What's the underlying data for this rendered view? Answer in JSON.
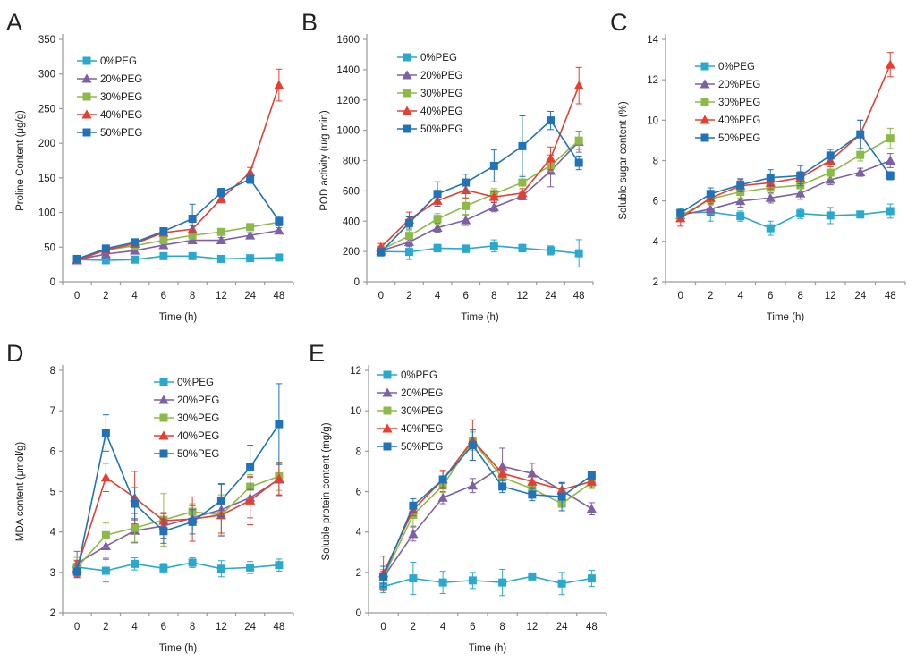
{
  "figure_title": "PEG stress physiology figure",
  "legend_labels": [
    "0%PEG",
    "20%PEG",
    "30%PEG",
    "40%PEG",
    "50%PEG"
  ],
  "colors": {
    "peg0": "#29A9CE",
    "peg20": "#7D60A5",
    "peg30": "#8CBA49",
    "peg40": "#E63E30",
    "peg50": "#2173B7",
    "axis": "#9a9a9a",
    "text": "#1a1a1a"
  },
  "chart_data": [
    {
      "panel": "A",
      "type": "line",
      "title": "",
      "xlabel": "Time (h)",
      "ylabel": "Proline Content (μg/g)",
      "categories": [
        "0",
        "2",
        "4",
        "6",
        "8",
        "12",
        "24",
        "48"
      ],
      "ylim": [
        0,
        350
      ],
      "ytick_step": 50,
      "grid": false,
      "legend_position": "inside-top-left",
      "legend_xy": [
        84,
        66
      ],
      "series": [
        {
          "name": "0%PEG",
          "color": "#29A9CE",
          "marker": "square",
          "values": [
            32,
            31,
            32,
            37,
            37,
            33,
            34,
            35
          ],
          "errors": [
            3,
            3,
            3,
            2,
            2,
            2,
            2,
            3
          ]
        },
        {
          "name": "20%PEG",
          "color": "#7D60A5",
          "marker": "triangle",
          "values": [
            32,
            40,
            45,
            53,
            60,
            60,
            67,
            74
          ],
          "errors": [
            4,
            3,
            4,
            4,
            4,
            4,
            4,
            4
          ]
        },
        {
          "name": "30%PEG",
          "color": "#8CBA49",
          "marker": "square",
          "values": [
            32,
            46,
            52,
            60,
            67,
            72,
            79,
            86
          ],
          "errors": [
            3,
            4,
            4,
            4,
            5,
            4,
            4,
            4
          ]
        },
        {
          "name": "40%PEG",
          "color": "#E63E30",
          "marker": "triangle",
          "values": [
            31,
            46,
            55,
            71,
            76,
            120,
            158,
            284
          ],
          "errors": [
            3,
            4,
            4,
            5,
            5,
            6,
            7,
            23
          ]
        },
        {
          "name": "50%PEG",
          "color": "#2173B7",
          "marker": "square",
          "values": [
            33,
            48,
            57,
            73,
            91,
            129,
            148,
            88
          ],
          "errors": [
            3,
            4,
            4,
            5,
            21,
            6,
            6,
            7
          ]
        }
      ]
    },
    {
      "panel": "B",
      "type": "line",
      "title": "",
      "xlabel": "Time (h)",
      "ylabel": "POD activity (u/g·min)",
      "categories": [
        "0",
        "2",
        "4",
        "6",
        "8",
        "12",
        "24",
        "48"
      ],
      "ylim": [
        0,
        1600
      ],
      "ytick_step": 200,
      "grid": false,
      "legend_position": "inside-top-left",
      "legend_xy": [
        112,
        62
      ],
      "series": [
        {
          "name": "0%PEG",
          "color": "#29A9CE",
          "marker": "square",
          "values": [
            200,
            197,
            222,
            218,
            237,
            222,
            207,
            188
          ],
          "errors": [
            20,
            50,
            25,
            25,
            40,
            25,
            30,
            90
          ]
        },
        {
          "name": "20%PEG",
          "color": "#7D60A5",
          "marker": "triangle",
          "values": [
            205,
            262,
            357,
            407,
            492,
            565,
            732,
            925
          ],
          "errors": [
            20,
            30,
            30,
            35,
            30,
            25,
            105,
            70
          ]
        },
        {
          "name": "30%PEG",
          "color": "#8CBA49",
          "marker": "square",
          "values": [
            210,
            303,
            415,
            500,
            580,
            655,
            768,
            932
          ],
          "errors": [
            25,
            35,
            35,
            55,
            35,
            55,
            40,
            60
          ]
        },
        {
          "name": "40%PEG",
          "color": "#E63E30",
          "marker": "triangle",
          "values": [
            228,
            410,
            535,
            605,
            560,
            585,
            815,
            1295
          ],
          "errors": [
            25,
            50,
            35,
            55,
            35,
            30,
            75,
            120
          ]
        },
        {
          "name": "50%PEG",
          "color": "#2173B7",
          "marker": "square",
          "values": [
            195,
            388,
            580,
            655,
            765,
            895,
            1065,
            785
          ],
          "errors": [
            25,
            40,
            80,
            55,
            105,
            200,
            60,
            45
          ]
        }
      ]
    },
    {
      "panel": "C",
      "type": "line",
      "title": "",
      "xlabel": "Time (h)",
      "ylabel": "Soluble sugar content (%)",
      "categories": [
        "0",
        "2",
        "4",
        "6",
        "8",
        "12",
        "24",
        "48"
      ],
      "ylim": [
        2,
        14
      ],
      "ytick_step": 2,
      "grid": false,
      "legend_position": "inside-top-left",
      "legend_xy": [
        100,
        72
      ],
      "series": [
        {
          "name": "0%PEG",
          "color": "#29A9CE",
          "marker": "square",
          "values": [
            5.4,
            5.45,
            5.25,
            4.65,
            5.38,
            5.28,
            5.33,
            5.5
          ],
          "errors": [
            0.2,
            0.45,
            0.25,
            0.35,
            0.25,
            0.4,
            0.15,
            0.35
          ]
        },
        {
          "name": "20%PEG",
          "color": "#7D60A5",
          "marker": "triangle",
          "values": [
            5.3,
            5.6,
            6.0,
            6.15,
            6.38,
            7.05,
            7.42,
            8.0
          ],
          "errors": [
            0.2,
            0.3,
            0.3,
            0.25,
            0.3,
            0.25,
            0.2,
            0.35
          ]
        },
        {
          "name": "30%PEG",
          "color": "#8CBA49",
          "marker": "square",
          "values": [
            5.25,
            6.1,
            6.45,
            6.65,
            6.78,
            7.4,
            8.28,
            9.1
          ],
          "errors": [
            0.2,
            0.3,
            0.3,
            0.3,
            0.3,
            0.3,
            0.3,
            0.5
          ]
        },
        {
          "name": "40%PEG",
          "color": "#E63E30",
          "marker": "triangle",
          "values": [
            5.15,
            6.15,
            6.75,
            6.9,
            7.15,
            8.0,
            9.3,
            12.75
          ],
          "errors": [
            0.4,
            0.3,
            0.3,
            0.3,
            0.3,
            0.3,
            0.7,
            0.6
          ]
        },
        {
          "name": "50%PEG",
          "color": "#2173B7",
          "marker": "square",
          "values": [
            5.4,
            6.35,
            6.8,
            7.15,
            7.25,
            8.25,
            9.3,
            7.25
          ],
          "errors": [
            0.25,
            0.3,
            0.3,
            0.4,
            0.5,
            0.3,
            0.7,
            0.2
          ]
        }
      ]
    },
    {
      "panel": "D",
      "type": "line",
      "title": "",
      "xlabel": "Time (h)",
      "ylabel": "MDA content (μmol/g)",
      "categories": [
        "0",
        "2",
        "4",
        "6",
        "8",
        "12",
        "24",
        "48"
      ],
      "ylim": [
        2,
        8
      ],
      "ytick_step": 1,
      "grid": false,
      "legend_position": "inside-top-center",
      "legend_xy": [
        170,
        55
      ],
      "series": [
        {
          "name": "0%PEG",
          "color": "#29A9CE",
          "marker": "square",
          "values": [
            3.13,
            3.04,
            3.21,
            3.1,
            3.24,
            3.09,
            3.12,
            3.18
          ],
          "errors": [
            0.15,
            0.28,
            0.15,
            0.12,
            0.12,
            0.2,
            0.15,
            0.15
          ]
        },
        {
          "name": "20%PEG",
          "color": "#7D60A5",
          "marker": "triangle",
          "values": [
            3.22,
            3.65,
            4.03,
            4.15,
            4.35,
            4.55,
            4.85,
            5.3
          ],
          "errors": [
            0.3,
            0.3,
            0.3,
            0.3,
            0.3,
            0.65,
            0.5,
            0.4
          ]
        },
        {
          "name": "30%PEG",
          "color": "#8CBA49",
          "marker": "square",
          "values": [
            3.12,
            3.92,
            4.1,
            4.3,
            4.5,
            4.42,
            5.12,
            5.38
          ],
          "errors": [
            0.25,
            0.3,
            0.35,
            0.65,
            0.2,
            0.5,
            0.3,
            0.35
          ]
        },
        {
          "name": "40%PEG",
          "color": "#E63E30",
          "marker": "triangle",
          "values": [
            3.1,
            5.35,
            4.85,
            4.28,
            4.32,
            4.42,
            4.78,
            5.32
          ],
          "errors": [
            0.2,
            0.35,
            0.65,
            0.2,
            0.55,
            0.45,
            0.6,
            0.4
          ]
        },
        {
          "name": "50%PEG",
          "color": "#2173B7",
          "marker": "square",
          "values": [
            3.02,
            6.45,
            4.7,
            4.02,
            4.25,
            4.78,
            5.6,
            6.67
          ],
          "errors": [
            0.15,
            0.45,
            0.4,
            0.3,
            0.3,
            0.4,
            0.55,
            1.0
          ]
        }
      ]
    },
    {
      "panel": "E",
      "type": "line",
      "title": "",
      "xlabel": "Time (h)",
      "ylabel": "Soluble protein content (mg/g)",
      "categories": [
        "0",
        "2",
        "4",
        "6",
        "8",
        "12",
        "24",
        "48"
      ],
      "ylim": [
        0,
        12
      ],
      "ytick_step": 2,
      "grid": false,
      "legend_position": "inside-top-left",
      "legend_xy": [
        82,
        47
      ],
      "series": [
        {
          "name": "0%PEG",
          "color": "#29A9CE",
          "marker": "square",
          "values": [
            1.3,
            1.7,
            1.5,
            1.6,
            1.5,
            1.8,
            1.45,
            1.7
          ],
          "errors": [
            0.3,
            0.8,
            0.55,
            0.4,
            0.65,
            0.15,
            0.55,
            0.4
          ]
        },
        {
          "name": "20%PEG",
          "color": "#7D60A5",
          "marker": "triangle",
          "values": [
            1.75,
            3.9,
            5.7,
            6.3,
            7.25,
            6.9,
            6.05,
            5.15
          ],
          "errors": [
            0.3,
            0.35,
            0.3,
            0.35,
            0.9,
            0.5,
            0.4,
            0.3
          ]
        },
        {
          "name": "30%PEG",
          "color": "#8CBA49",
          "marker": "square",
          "values": [
            1.75,
            4.85,
            6.3,
            8.5,
            6.7,
            6.15,
            5.4,
            6.45
          ],
          "errors": [
            0.4,
            0.55,
            0.35,
            0.45,
            0.3,
            0.3,
            0.35,
            0.3
          ]
        },
        {
          "name": "40%PEG",
          "color": "#E63E30",
          "marker": "triangle",
          "values": [
            1.95,
            5.1,
            6.6,
            8.55,
            6.9,
            6.5,
            6.1,
            6.5
          ],
          "errors": [
            0.85,
            0.3,
            0.45,
            1.0,
            0.3,
            0.3,
            0.3,
            0.3
          ]
        },
        {
          "name": "50%PEG",
          "color": "#2173B7",
          "marker": "square",
          "values": [
            1.8,
            5.3,
            6.6,
            8.3,
            6.25,
            5.85,
            5.75,
            6.8
          ],
          "errors": [
            0.5,
            0.35,
            0.4,
            0.75,
            0.3,
            0.3,
            0.7,
            0.2
          ]
        }
      ]
    }
  ]
}
